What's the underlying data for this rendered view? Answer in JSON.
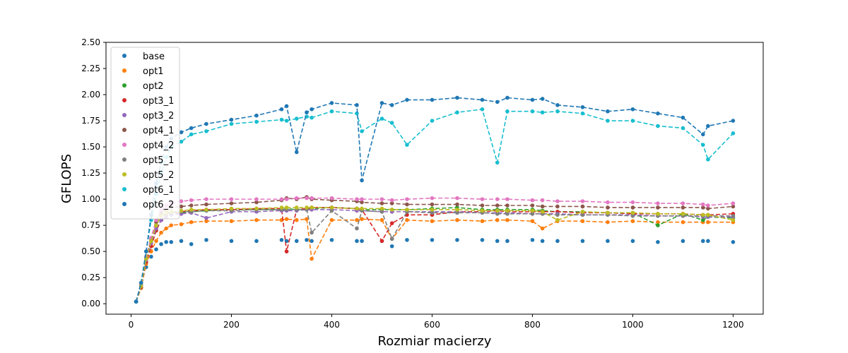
{
  "chart_data": {
    "type": "scatter",
    "title": "",
    "xlabel": "Rozmiar macierzy",
    "ylabel": "GFLOPS",
    "xlim": [
      -50,
      1260
    ],
    "ylim": [
      -0.1,
      2.5
    ],
    "xticks": [
      0,
      200,
      400,
      600,
      800,
      1000,
      1200
    ],
    "yticks": [
      0.0,
      0.25,
      0.5,
      0.75,
      1.0,
      1.25,
      1.5,
      1.75,
      2.0,
      2.25,
      2.5
    ],
    "xtick_labels": [
      "0",
      "200",
      "400",
      "600",
      "800",
      "1000",
      "1200"
    ],
    "ytick_labels": [
      "0.00",
      "0.25",
      "0.50",
      "0.75",
      "1.00",
      "1.25",
      "1.50",
      "1.75",
      "2.00",
      "2.25",
      "2.50"
    ],
    "grid": false,
    "legend_position": "top-left",
    "x": [
      10,
      20,
      30,
      40,
      50,
      60,
      70,
      80,
      100,
      120,
      150,
      200,
      250,
      300,
      310,
      330,
      350,
      360,
      400,
      450,
      460,
      500,
      520,
      550,
      600,
      650,
      700,
      730,
      750,
      800,
      820,
      850,
      900,
      950,
      1000,
      1050,
      1100,
      1140,
      1150,
      1200
    ],
    "series": [
      {
        "name": "base",
        "color": "#1f77b4",
        "dashed": false,
        "values": [
          0.02,
          0.15,
          0.35,
          0.45,
          0.52,
          0.57,
          0.59,
          0.59,
          0.6,
          0.57,
          0.61,
          0.6,
          0.6,
          0.61,
          0.6,
          0.6,
          0.61,
          0.6,
          0.61,
          0.6,
          0.6,
          0.6,
          0.55,
          0.61,
          0.61,
          0.61,
          0.61,
          0.6,
          0.6,
          0.61,
          0.6,
          0.6,
          0.6,
          0.6,
          0.6,
          0.59,
          0.6,
          0.6,
          0.6,
          0.59
        ]
      },
      {
        "name": "opt1",
        "color": "#ff7f0e",
        "dashed": true,
        "values": [
          0.02,
          0.15,
          0.38,
          0.5,
          0.6,
          0.68,
          0.72,
          0.75,
          0.76,
          0.78,
          0.79,
          0.79,
          0.8,
          0.8,
          0.81,
          0.8,
          0.81,
          0.43,
          0.8,
          0.8,
          0.81,
          0.8,
          0.62,
          0.8,
          0.79,
          0.8,
          0.79,
          0.8,
          0.8,
          0.79,
          0.72,
          0.79,
          0.79,
          0.78,
          0.79,
          0.78,
          0.78,
          0.78,
          0.78,
          0.78
        ]
      },
      {
        "name": "opt2",
        "color": "#2ca02c",
        "dashed": true,
        "values": [
          0.02,
          0.16,
          0.4,
          0.55,
          0.7,
          0.8,
          0.84,
          0.86,
          0.87,
          0.88,
          0.89,
          0.9,
          0.9,
          0.9,
          0.91,
          0.9,
          0.91,
          0.91,
          0.92,
          0.91,
          0.9,
          0.9,
          0.9,
          0.9,
          0.91,
          0.92,
          0.9,
          0.9,
          0.9,
          0.9,
          0.89,
          0.88,
          0.88,
          0.87,
          0.87,
          0.75,
          0.86,
          0.8,
          0.83,
          0.82
        ]
      },
      {
        "name": "opt3_1",
        "color": "#d62728",
        "dashed": true,
        "values": [
          0.02,
          0.16,
          0.4,
          0.55,
          0.7,
          0.8,
          0.84,
          0.86,
          0.88,
          0.89,
          0.9,
          0.9,
          0.91,
          0.91,
          0.5,
          0.9,
          0.91,
          0.92,
          0.92,
          0.91,
          0.9,
          0.6,
          0.77,
          0.85,
          0.85,
          0.88,
          0.88,
          0.89,
          0.88,
          0.88,
          0.88,
          0.88,
          0.87,
          0.87,
          0.86,
          0.86,
          0.86,
          0.85,
          0.85,
          0.86
        ]
      },
      {
        "name": "opt3_2",
        "color": "#9467bd",
        "dashed": true,
        "values": [
          0.02,
          0.17,
          0.42,
          0.58,
          0.72,
          0.8,
          0.83,
          0.85,
          0.86,
          0.87,
          0.82,
          0.88,
          0.88,
          0.89,
          0.89,
          0.89,
          0.9,
          0.9,
          0.9,
          0.89,
          0.89,
          0.88,
          0.88,
          0.88,
          0.88,
          0.88,
          0.87,
          0.87,
          0.87,
          0.86,
          0.86,
          0.86,
          0.85,
          0.85,
          0.85,
          0.84,
          0.84,
          0.83,
          0.83,
          0.83
        ]
      },
      {
        "name": "opt4_1",
        "color": "#8c564b",
        "dashed": true,
        "values": [
          0.02,
          0.18,
          0.45,
          0.62,
          0.78,
          0.87,
          0.9,
          0.92,
          0.93,
          0.94,
          0.95,
          0.96,
          0.97,
          0.99,
          1.01,
          1.0,
          1.02,
          1.0,
          0.99,
          0.98,
          0.97,
          0.96,
          0.96,
          0.95,
          0.95,
          0.95,
          0.94,
          0.94,
          0.94,
          0.94,
          0.93,
          0.93,
          0.93,
          0.92,
          0.92,
          0.92,
          0.92,
          0.92,
          0.91,
          0.93
        ]
      },
      {
        "name": "opt4_2",
        "color": "#e377c2",
        "dashed": true,
        "values": [
          0.02,
          0.18,
          0.45,
          0.63,
          0.8,
          0.9,
          0.94,
          0.96,
          0.98,
          0.99,
          1.0,
          1.0,
          1.0,
          1.0,
          1.0,
          1.01,
          1.01,
          1.01,
          1.01,
          1.0,
          1.0,
          1.0,
          0.99,
          1.0,
          1.01,
          1.01,
          1.0,
          1.0,
          1.0,
          0.99,
          0.99,
          0.98,
          0.98,
          0.97,
          0.97,
          0.96,
          0.96,
          0.95,
          0.94,
          0.96
        ]
      },
      {
        "name": "opt5_1",
        "color": "#7f7f7f",
        "dashed": true,
        "values": [
          0.02,
          0.17,
          0.43,
          0.6,
          0.75,
          0.84,
          0.86,
          0.87,
          0.88,
          0.88,
          0.89,
          0.89,
          0.9,
          0.9,
          0.9,
          0.9,
          0.9,
          0.68,
          0.89,
          0.72,
          0.89,
          0.88,
          0.62,
          0.88,
          0.87,
          0.87,
          0.87,
          0.86,
          0.86,
          0.86,
          0.86,
          0.85,
          0.85,
          0.85,
          0.84,
          0.84,
          0.84,
          0.84,
          0.84,
          0.84
        ]
      },
      {
        "name": "opt5_2",
        "color": "#bcbd22",
        "dashed": true,
        "values": [
          0.02,
          0.17,
          0.43,
          0.6,
          0.75,
          0.84,
          0.87,
          0.88,
          0.89,
          0.9,
          0.9,
          0.91,
          0.91,
          0.92,
          0.92,
          0.92,
          0.92,
          0.92,
          0.92,
          0.91,
          0.91,
          0.91,
          0.9,
          0.9,
          0.9,
          0.9,
          0.89,
          0.89,
          0.89,
          0.89,
          0.88,
          0.8,
          0.88,
          0.87,
          0.87,
          0.86,
          0.86,
          0.85,
          0.85,
          0.8
        ]
      },
      {
        "name": "opt6_1",
        "color": "#17becf",
        "dashed": true,
        "values": [
          0.02,
          0.2,
          0.5,
          0.8,
          1.05,
          1.25,
          1.4,
          1.5,
          1.55,
          1.62,
          1.65,
          1.72,
          1.74,
          1.76,
          1.75,
          1.77,
          1.79,
          1.78,
          1.84,
          1.82,
          1.65,
          1.77,
          1.73,
          1.52,
          1.75,
          1.83,
          1.86,
          1.35,
          1.84,
          1.84,
          1.83,
          1.84,
          1.82,
          1.75,
          1.75,
          1.7,
          1.68,
          1.52,
          1.38,
          1.63
        ]
      },
      {
        "name": "opt6_2",
        "color": "#1f77b4",
        "dashed": true,
        "values": [
          0.02,
          0.2,
          0.5,
          0.85,
          1.15,
          1.35,
          1.5,
          1.58,
          1.64,
          1.68,
          1.72,
          1.76,
          1.8,
          1.86,
          1.89,
          1.45,
          1.83,
          1.86,
          1.92,
          1.9,
          1.18,
          1.92,
          1.9,
          1.95,
          1.95,
          1.97,
          1.95,
          1.93,
          1.97,
          1.95,
          1.96,
          1.9,
          1.88,
          1.84,
          1.86,
          1.82,
          1.78,
          1.62,
          1.7,
          1.75
        ]
      }
    ]
  }
}
